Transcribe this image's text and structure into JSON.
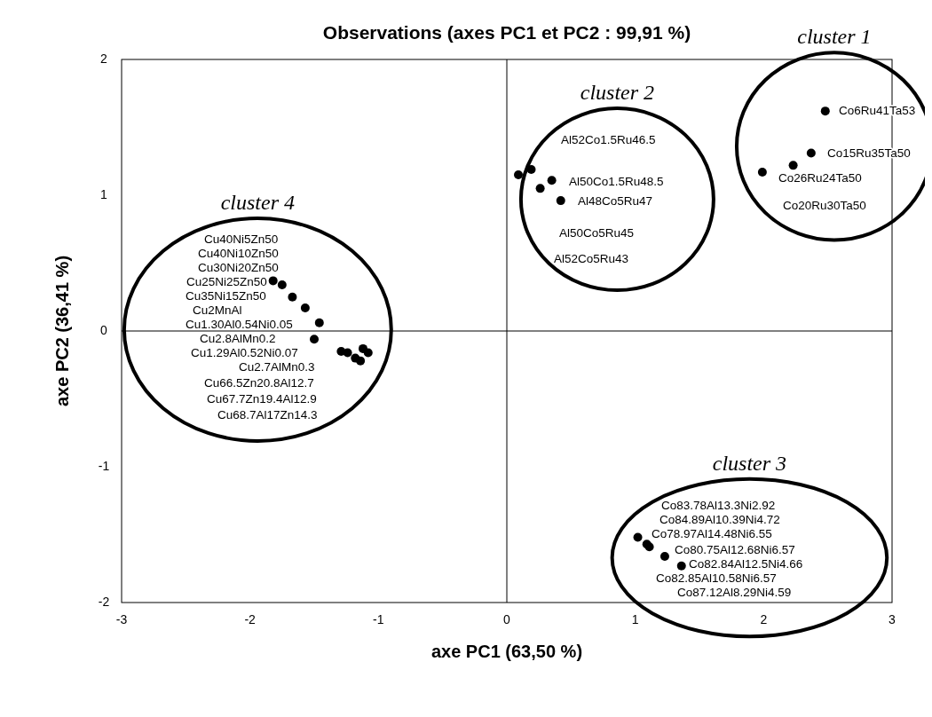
{
  "chart_data": {
    "type": "scatter",
    "title": "Observations (axes PC1 et PC2 : 99,91 %)",
    "xlabel": "axe PC1 (63,50 %)",
    "ylabel": "axe PC2 (36,41 %)",
    "xlim": [
      -3,
      3
    ],
    "ylim": [
      -2,
      2
    ],
    "xticks": [
      -3,
      -2,
      -1,
      0,
      1,
      2,
      3
    ],
    "yticks": [
      -2,
      -1,
      0,
      1,
      2
    ],
    "marker": "circle",
    "series": [
      {
        "color": "#000000",
        "x": [
          -1.82,
          -1.75,
          -1.67,
          -1.57,
          -1.46,
          -1.5,
          -1.29,
          -1.24,
          -1.18,
          -1.14,
          -1.12,
          -1.08,
          0.09,
          0.19,
          0.26,
          0.35,
          0.42,
          2.48,
          2.37,
          2.23,
          1.99,
          1.02,
          1.09,
          1.11,
          1.23,
          1.36
        ],
        "values": [
          0.37,
          0.34,
          0.25,
          0.17,
          0.06,
          -0.06,
          -0.15,
          -0.16,
          -0.2,
          -0.22,
          -0.13,
          -0.16,
          1.15,
          1.19,
          1.05,
          1.11,
          0.96,
          1.62,
          1.31,
          1.22,
          1.17,
          -1.52,
          -1.57,
          -1.59,
          -1.66,
          -1.73
        ]
      }
    ],
    "annotations": [
      "cluster 1",
      "cluster 2",
      "cluster 3",
      "cluster 4",
      "Cu40Ni5Zn50",
      "Cu40Ni10Zn50",
      "Cu30Ni20Zn50",
      "Cu25Ni25Zn50",
      "Cu35Ni15Zn50",
      "Cu2MnAl",
      "Cu1.30Al0.54Ni0.05",
      "Cu2.8AlMn0.2",
      "Cu1.29Al0.52Ni0.07",
      "Cu2.7AlMn0.3",
      "Cu66.5Zn20.8Al12.7",
      "Cu67.7Zn19.4Al12.9",
      "Cu68.7Al17Zn14.3",
      "Al52Co1.5Ru46.5",
      "Al50Co1.5Ru48.5",
      "Al48Co5Ru47",
      "Al50Co5Ru45",
      "Al52Co5Ru43",
      "Co6Ru41Ta53",
      "Co15Ru35Ta50",
      "Co26Ru24Ta50",
      "Co20Ru30Ta50",
      "Co83.78Al13.3Ni2.92",
      "Co84.89Al10.39Ni4.72",
      "Co78.97Al14.48Ni6.55",
      "Co80.75Al12.68Ni6.57",
      "Co82.84Al12.5Ni4.66",
      "Co82.85Al10.58Ni6.57",
      "Co87.12Al8.29Ni4.59"
    ]
  }
}
